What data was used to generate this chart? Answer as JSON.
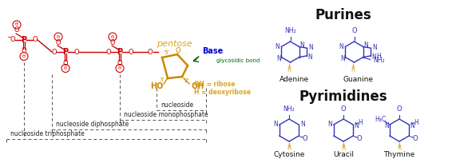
{
  "background": "white",
  "colors": {
    "red": "#CC0000",
    "gold": "#DAA520",
    "blue": "#0000CC",
    "green": "#006400",
    "black": "#111111",
    "struct_blue": "#3333BB",
    "r_gold": "#DAA520",
    "dash": "#555555"
  },
  "purines_title": "Purines",
  "pyrimidines_title": "Pyrimidines",
  "adenine_label": "Adenine",
  "guanine_label": "Guanine",
  "cytosine_label": "Cytosine",
  "uracil_label": "Uracil",
  "thymine_label": "Thymine",
  "pentose_label": "pentose",
  "base_label": "Base",
  "glycosidic_label": "glycosidic bond",
  "ribose_label": "OH = ribose",
  "deoxyribose_label": "H = deoxyribose",
  "ns_label": "nucleoside",
  "nmp_label": "nucleoside monophosphate",
  "ndp_label": "nucleoside diphosphate",
  "ntp_label": "nucleoside triphosphate"
}
